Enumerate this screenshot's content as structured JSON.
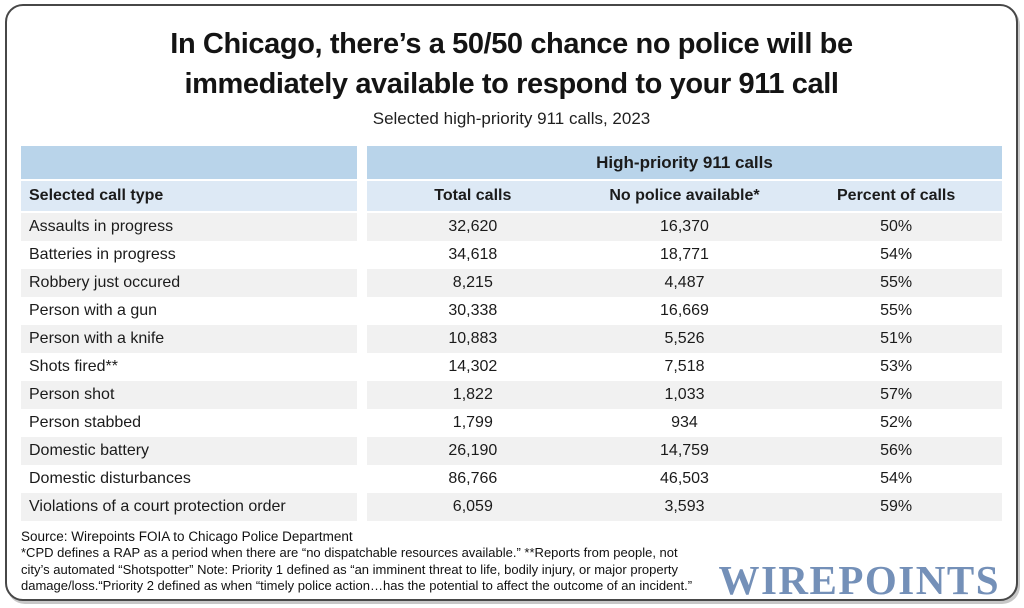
{
  "header": {
    "title_line1": "In Chicago, there’s a 50/50 chance no police will be",
    "title_line2": "immediately available to respond to your 911 call",
    "subtitle": "Selected high-priority 911 calls, 2023"
  },
  "table": {
    "group_header": "High-priority 911 calls",
    "col_headers": {
      "call_type": "Selected call type",
      "total": "Total calls",
      "no_police": "No police available*",
      "percent": "Percent of calls"
    },
    "rows": [
      {
        "label": "Assaults in progress",
        "total": "32,620",
        "no_police": "16,370",
        "percent": "50%"
      },
      {
        "label": "Batteries in progress",
        "total": "34,618",
        "no_police": "18,771",
        "percent": "54%"
      },
      {
        "label": "Robbery just occured",
        "total": "8,215",
        "no_police": "4,487",
        "percent": "55%"
      },
      {
        "label": "Person with a gun",
        "total": "30,338",
        "no_police": "16,669",
        "percent": "55%"
      },
      {
        "label": "Person with a knife",
        "total": "10,883",
        "no_police": "5,526",
        "percent": "51%"
      },
      {
        "label": "Shots fired**",
        "total": "14,302",
        "no_police": "7,518",
        "percent": "53%"
      },
      {
        "label": "Person shot",
        "total": "1,822",
        "no_police": "1,033",
        "percent": "57%"
      },
      {
        "label": "Person stabbed",
        "total": "1,799",
        "no_police": "934",
        "percent": "52%"
      },
      {
        "label": "Domestic battery",
        "total": "26,190",
        "no_police": "14,759",
        "percent": "56%"
      },
      {
        "label": "Domestic disturbances",
        "total": "86,766",
        "no_police": "46,503",
        "percent": "54%"
      },
      {
        "label": "Violations of a court protection order",
        "total": "6,059",
        "no_police": "3,593",
        "percent": "59%"
      }
    ]
  },
  "footer": {
    "source": "Source: Wirepoints FOIA to Chicago Police Department",
    "note_line1": "*CPD defines a RAP as a period when there are “no dispatchable resources available.” **Reports from people, not",
    "note_line2": "city’s automated “Shotspotter” Note: Priority 1 defined as “an imminent threat to life, bodily injury, or major property",
    "note_line3": "damage/loss.“Priority 2 defined as when “timely police action…has the potential to affect the outcome of an incident.”",
    "logo": "WIREPOINTS"
  },
  "colors": {
    "band_blue": "#b9d4ea",
    "band_light_blue": "#dde9f5",
    "stripe_gray": "#f1f1f1",
    "logo_blue": "#7490b8"
  },
  "chart_data": {
    "type": "table",
    "title": "In Chicago, there’s a 50/50 chance no police will be immediately available to respond to your 911 call",
    "subtitle": "Selected high-priority 911 calls, 2023",
    "group_header": "High-priority 911 calls",
    "columns": [
      "Selected call type",
      "Total calls",
      "No police available*",
      "Percent of calls"
    ],
    "rows": [
      [
        "Assaults in progress",
        32620,
        16370,
        "50%"
      ],
      [
        "Batteries in progress",
        34618,
        18771,
        "54%"
      ],
      [
        "Robbery just occured",
        8215,
        4487,
        "55%"
      ],
      [
        "Person with a gun",
        30338,
        16669,
        "55%"
      ],
      [
        "Person with a knife",
        10883,
        5526,
        "51%"
      ],
      [
        "Shots fired**",
        14302,
        7518,
        "53%"
      ],
      [
        "Person shot",
        1822,
        1033,
        "57%"
      ],
      [
        "Person stabbed",
        1799,
        934,
        "52%"
      ],
      [
        "Domestic battery",
        26190,
        14759,
        "56%"
      ],
      [
        "Domestic disturbances",
        86766,
        46503,
        "54%"
      ],
      [
        "Violations of a court protection order",
        6059,
        3593,
        "59%"
      ]
    ],
    "source": "Wirepoints FOIA to Chicago Police Department"
  }
}
